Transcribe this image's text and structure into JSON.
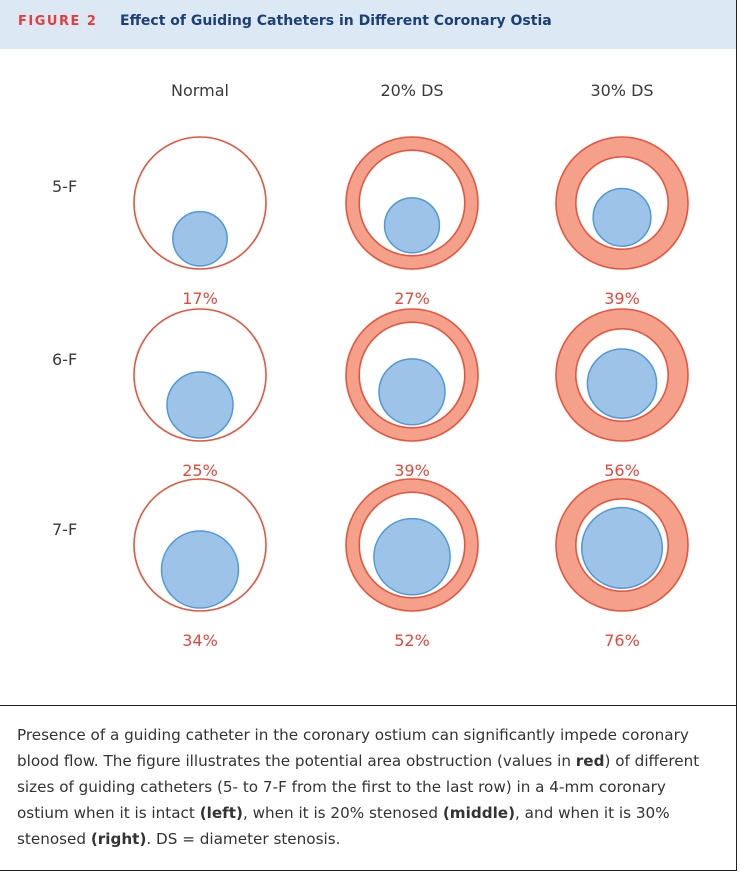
{
  "header": {
    "figure_label": "FIGURE 2",
    "title": "Effect of Guiding Catheters in Different Coronary Ostia"
  },
  "columns": [
    "Normal",
    "20% DS",
    "30% DS"
  ],
  "rows": [
    "5-F",
    "6-F",
    "7-F"
  ],
  "obstruction": [
    [
      "17%",
      "27%",
      "39%"
    ],
    [
      "25%",
      "39%",
      "56%"
    ],
    [
      "34%",
      "52%",
      "76%"
    ]
  ],
  "stenosis_fraction": [
    0,
    0.2,
    0.3
  ],
  "catheter_area_fraction": [
    [
      0.17,
      0.27,
      0.39
    ],
    [
      0.25,
      0.39,
      0.56
    ],
    [
      0.34,
      0.52,
      0.76
    ]
  ],
  "colors": {
    "header_bg": "#dce9f5",
    "figure_label": "#e43d3d",
    "title": "#1b3f77",
    "ostium_ring": "#e8553d",
    "stenosis_fill": "#f4a08a",
    "catheter_fill": "#9ec3e8",
    "catheter_stroke": "#4f9ad6",
    "percent_text": "#e8473d"
  },
  "caption": {
    "p1": "Presence of a guiding catheter in the coronary ostium can significantly impede coronary blood flow. The figure illustrates the potential area obstruction (values in ",
    "b1": "red",
    "p2": ") of different sizes of guiding catheters (5- to 7-F from the first to the last row) in a 4-mm coronary ostium when it is intact ",
    "b2": "(left)",
    "p3": ", when it is 20% stenosed ",
    "b3": "(middle)",
    "p4": ", and when it is 30% stenosed ",
    "b4": "(right)",
    "p5": ". DS = diameter stenosis."
  }
}
